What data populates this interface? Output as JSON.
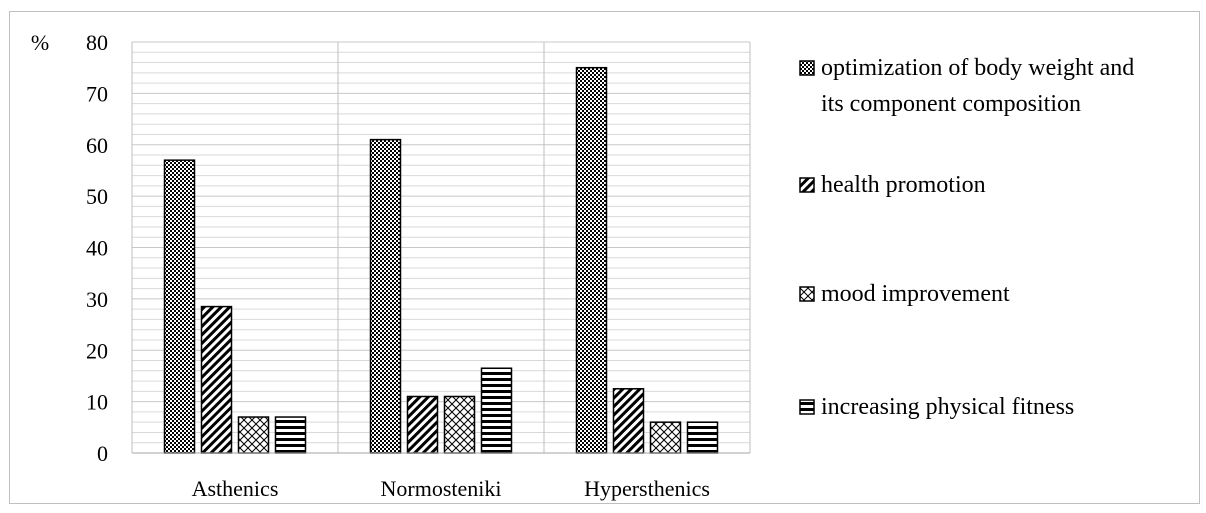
{
  "chart_data": {
    "type": "bar",
    "unit_label": "%",
    "categories": [
      "Asthenics",
      "Normosteniki",
      "Hypersthenics"
    ],
    "series": [
      {
        "name": "optimization of body weight and its component composition",
        "name_lines": [
          "optimization of body weight and",
          "its component composition"
        ],
        "pattern": "dense-dots",
        "values": [
          57,
          61,
          75
        ]
      },
      {
        "name": "health promotion",
        "name_lines": [
          "health promotion"
        ],
        "pattern": "diagonal-stripes",
        "values": [
          28.5,
          11,
          12.5
        ]
      },
      {
        "name": "mood improvement",
        "name_lines": [
          "mood improvement"
        ],
        "pattern": "crosshatch",
        "values": [
          7,
          11,
          6
        ]
      },
      {
        "name": "increasing physical fitness",
        "name_lines": [
          "increasing physical fitness"
        ],
        "pattern": "horizontal-stripes",
        "values": [
          7,
          16.5,
          6
        ]
      }
    ],
    "ylim": [
      0,
      80
    ],
    "y_ticks": [
      0,
      10,
      20,
      30,
      40,
      50,
      60,
      70,
      80
    ],
    "grid": true,
    "legend_position": "right",
    "colors": {
      "bar_stroke": "#000000",
      "gridline": "#d9d9d9",
      "axis": "#bfbfbf"
    }
  }
}
